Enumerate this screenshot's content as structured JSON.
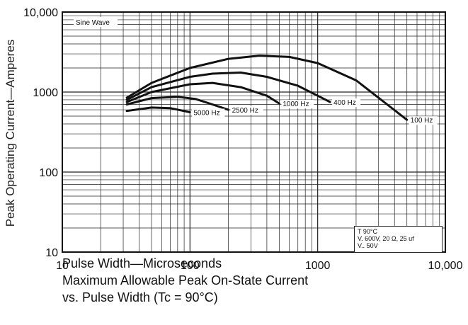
{
  "chart_data": {
    "type": "line",
    "x_scale": "log",
    "y_scale": "log",
    "xlim": [
      10,
      10000
    ],
    "ylim": [
      10,
      10000
    ],
    "grid": true,
    "xlabel": "Pulse Width—Microseconds",
    "ylabel": "Peak Operating Current—Amperes",
    "caption_line1": "Maximum Allowable Peak On-State Current",
    "caption_line2": "vs. Pulse Width (Tc = 90°C)",
    "x_ticks": [
      "10",
      "100",
      "1000",
      "10,000"
    ],
    "y_ticks": [
      "10",
      "100",
      "1000",
      "10,000"
    ],
    "annotation": "Sine Wave",
    "notes": [
      "T   90°C",
      "V.   600V, 20 Ω, 25 uf",
      "V..   50V"
    ],
    "series": [
      {
        "name": "100 Hz",
        "x": [
          32,
          50,
          100,
          200,
          350,
          600,
          1000,
          2000,
          3500,
          5000
        ],
        "y": [
          850,
          1300,
          2000,
          2600,
          2850,
          2750,
          2300,
          1400,
          700,
          450
        ]
      },
      {
        "name": "400 Hz",
        "x": [
          32,
          50,
          100,
          150,
          250,
          400,
          700,
          1000,
          1250
        ],
        "y": [
          800,
          1150,
          1550,
          1700,
          1750,
          1550,
          1200,
          900,
          750
        ]
      },
      {
        "name": "1000 Hz",
        "x": [
          32,
          50,
          100,
          150,
          250,
          400,
          500
        ],
        "y": [
          750,
          1000,
          1250,
          1300,
          1150,
          900,
          720
        ]
      },
      {
        "name": "2500 Hz",
        "x": [
          32,
          50,
          80,
          110,
          150,
          200
        ],
        "y": [
          700,
          840,
          870,
          820,
          700,
          600
        ]
      },
      {
        "name": "5000 Hz",
        "x": [
          32,
          50,
          70,
          100
        ],
        "y": [
          580,
          640,
          630,
          560
        ]
      }
    ]
  }
}
